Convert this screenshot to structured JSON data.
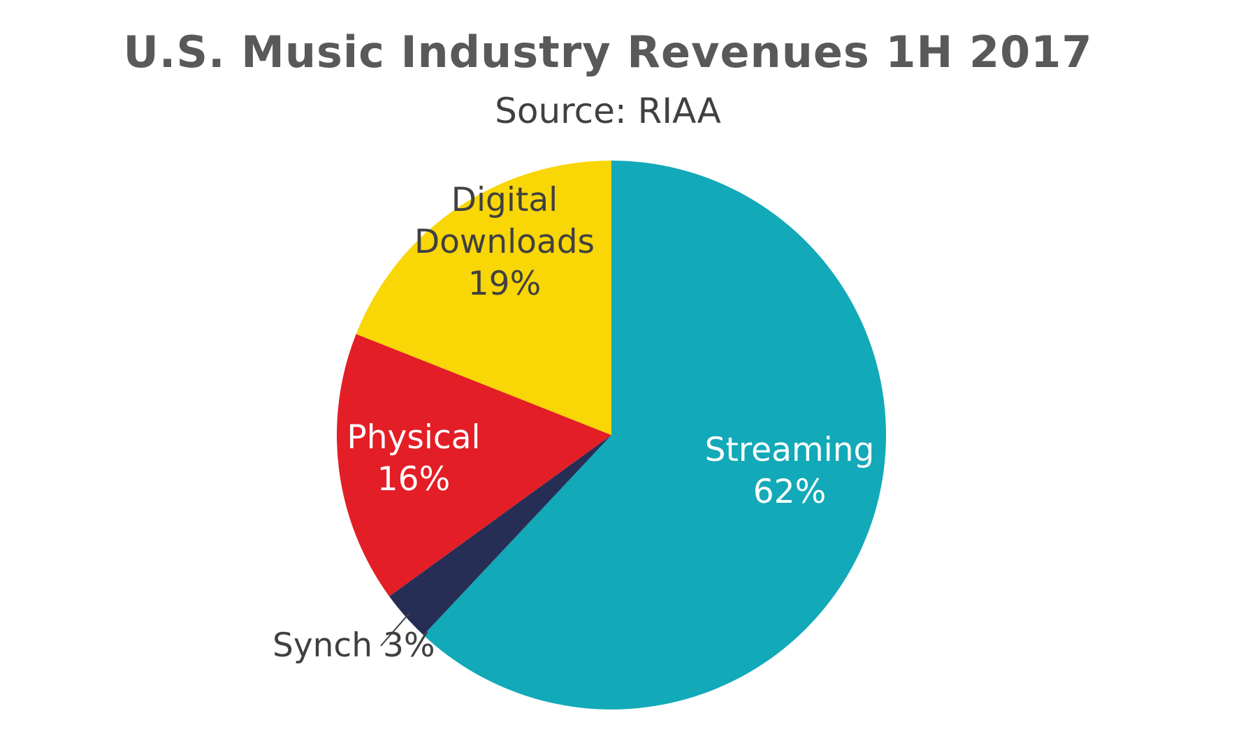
{
  "chart_data": {
    "type": "pie",
    "title": "U.S. Music Industry Revenues 1H 2017",
    "subtitle": "Source: RIAA",
    "slices": [
      {
        "label_lines": [
          "Streaming",
          "62%"
        ],
        "value": 62,
        "color": "#12a9b8",
        "text_color": "#ffffff"
      },
      {
        "label_lines": [
          "Synch 3%"
        ],
        "value": 3,
        "color": "#262e55",
        "text_color": "#3f4042"
      },
      {
        "label_lines": [
          "Physical",
          "16%"
        ],
        "value": 16,
        "color": "#e31e26",
        "text_color": "#ffffff"
      },
      {
        "label_lines": [
          "Digital",
          "Downloads",
          "19%"
        ],
        "value": 19,
        "color": "#f9d605",
        "text_color": "#3f4042"
      }
    ],
    "start": "12 o'clock",
    "direction": "clockwise",
    "legend": "none"
  }
}
